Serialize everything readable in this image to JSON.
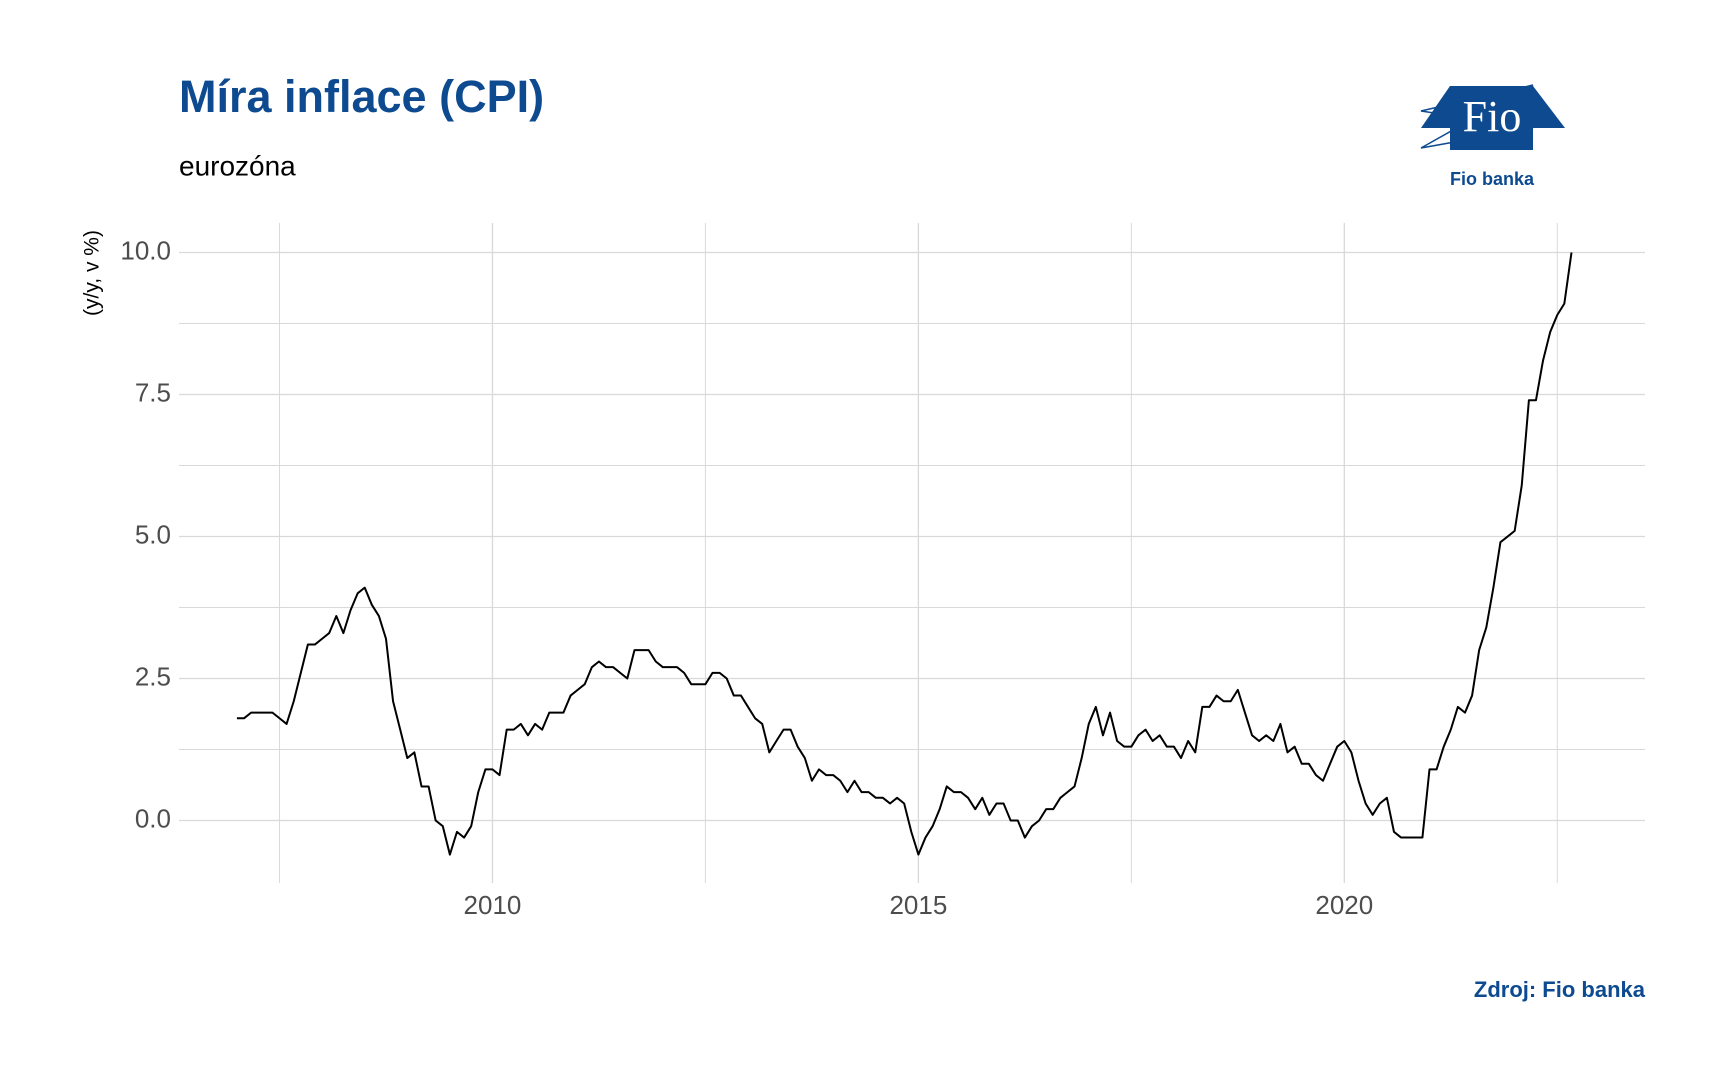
{
  "chart_data": {
    "type": "line",
    "title": "Míra inflace (CPI)",
    "subtitle": "eurozóna",
    "y_label": "(y/y, v %)",
    "source": "Zdroj: Fio banka",
    "logo": {
      "mark": "Fio",
      "name": "Fio banka"
    },
    "x": [
      2007,
      2007.083,
      2007.167,
      2007.25,
      2007.333,
      2007.417,
      2007.5,
      2007.583,
      2007.667,
      2007.75,
      2007.833,
      2007.917,
      2008,
      2008.083,
      2008.167,
      2008.25,
      2008.333,
      2008.417,
      2008.5,
      2008.583,
      2008.667,
      2008.75,
      2008.833,
      2008.917,
      2009,
      2009.083,
      2009.167,
      2009.25,
      2009.333,
      2009.417,
      2009.5,
      2009.583,
      2009.667,
      2009.75,
      2009.833,
      2009.917,
      2010,
      2010.083,
      2010.167,
      2010.25,
      2010.333,
      2010.417,
      2010.5,
      2010.583,
      2010.667,
      2010.75,
      2010.833,
      2010.917,
      2011,
      2011.083,
      2011.167,
      2011.25,
      2011.333,
      2011.417,
      2011.5,
      2011.583,
      2011.667,
      2011.75,
      2011.833,
      2011.917,
      2012,
      2012.083,
      2012.167,
      2012.25,
      2012.333,
      2012.417,
      2012.5,
      2012.583,
      2012.667,
      2012.75,
      2012.833,
      2012.917,
      2013,
      2013.083,
      2013.167,
      2013.25,
      2013.333,
      2013.417,
      2013.5,
      2013.583,
      2013.667,
      2013.75,
      2013.833,
      2013.917,
      2014,
      2014.083,
      2014.167,
      2014.25,
      2014.333,
      2014.417,
      2014.5,
      2014.583,
      2014.667,
      2014.75,
      2014.833,
      2014.917,
      2015,
      2015.083,
      2015.167,
      2015.25,
      2015.333,
      2015.417,
      2015.5,
      2015.583,
      2015.667,
      2015.75,
      2015.833,
      2015.917,
      2016,
      2016.083,
      2016.167,
      2016.25,
      2016.333,
      2016.417,
      2016.5,
      2016.583,
      2016.667,
      2016.75,
      2016.833,
      2016.917,
      2017,
      2017.083,
      2017.167,
      2017.25,
      2017.333,
      2017.417,
      2017.5,
      2017.583,
      2017.667,
      2017.75,
      2017.833,
      2017.917,
      2018,
      2018.083,
      2018.167,
      2018.25,
      2018.333,
      2018.417,
      2018.5,
      2018.583,
      2018.667,
      2018.75,
      2018.833,
      2018.917,
      2019,
      2019.083,
      2019.167,
      2019.25,
      2019.333,
      2019.417,
      2019.5,
      2019.583,
      2019.667,
      2019.75,
      2019.833,
      2019.917,
      2020,
      2020.083,
      2020.167,
      2020.25,
      2020.333,
      2020.417,
      2020.5,
      2020.583,
      2020.667,
      2020.75,
      2020.833,
      2020.917,
      2021,
      2021.083,
      2021.167,
      2021.25,
      2021.333,
      2021.417,
      2021.5,
      2021.583,
      2021.667,
      2021.75,
      2021.833,
      2021.917,
      2022,
      2022.083,
      2022.167,
      2022.25,
      2022.333,
      2022.417,
      2022.5,
      2022.583,
      2022.667
    ],
    "series": [
      {
        "name": "CPI",
        "color": "#000000",
        "values": [
          1.8,
          1.8,
          1.9,
          1.9,
          1.9,
          1.9,
          1.8,
          1.7,
          2.1,
          2.6,
          3.1,
          3.1,
          3.2,
          3.3,
          3.6,
          3.3,
          3.7,
          4.0,
          4.1,
          3.8,
          3.6,
          3.2,
          2.1,
          1.6,
          1.1,
          1.2,
          0.6,
          0.6,
          0.0,
          -0.1,
          -0.6,
          -0.2,
          -0.3,
          -0.1,
          0.5,
          0.9,
          0.9,
          0.8,
          1.6,
          1.6,
          1.7,
          1.5,
          1.7,
          1.6,
          1.9,
          1.9,
          1.9,
          2.2,
          2.3,
          2.4,
          2.7,
          2.8,
          2.7,
          2.7,
          2.6,
          2.5,
          3.0,
          3.0,
          3.0,
          2.8,
          2.7,
          2.7,
          2.7,
          2.6,
          2.4,
          2.4,
          2.4,
          2.6,
          2.6,
          2.5,
          2.2,
          2.2,
          2.0,
          1.8,
          1.7,
          1.2,
          1.4,
          1.6,
          1.6,
          1.3,
          1.1,
          0.7,
          0.9,
          0.8,
          0.8,
          0.7,
          0.5,
          0.7,
          0.5,
          0.5,
          0.4,
          0.4,
          0.3,
          0.4,
          0.3,
          -0.2,
          -0.6,
          -0.3,
          -0.1,
          0.2,
          0.6,
          0.5,
          0.5,
          0.4,
          0.2,
          0.4,
          0.1,
          0.3,
          0.3,
          0.0,
          0.0,
          -0.3,
          -0.1,
          0.0,
          0.2,
          0.2,
          0.4,
          0.5,
          0.6,
          1.1,
          1.7,
          2.0,
          1.5,
          1.9,
          1.4,
          1.3,
          1.3,
          1.5,
          1.6,
          1.4,
          1.5,
          1.3,
          1.3,
          1.1,
          1.4,
          1.2,
          2.0,
          2.0,
          2.2,
          2.1,
          2.1,
          2.3,
          1.9,
          1.5,
          1.4,
          1.5,
          1.4,
          1.7,
          1.2,
          1.3,
          1.0,
          1.0,
          0.8,
          0.7,
          1.0,
          1.3,
          1.4,
          1.2,
          0.7,
          0.3,
          0.1,
          0.3,
          0.4,
          -0.2,
          -0.3,
          -0.3,
          -0.3,
          -0.3,
          0.9,
          0.9,
          1.3,
          1.6,
          2.0,
          1.9,
          2.2,
          3.0,
          3.4,
          4.1,
          4.9,
          5.0,
          5.1,
          5.9,
          7.4,
          7.4,
          8.1,
          8.6,
          8.9,
          9.1,
          10.0
        ]
      }
    ],
    "xlim": [
      2006.32,
      2023.53
    ],
    "xticks": [
      2010,
      2015,
      2020
    ],
    "x_minor_grid": [
      2007.5,
      2012.5,
      2017.5,
      2022.5
    ],
    "ylim": [
      -1.1,
      10.52
    ],
    "yticks": [
      {
        "value": 0,
        "label": "0.0"
      },
      {
        "value": 2.5,
        "label": "2.5"
      },
      {
        "value": 5,
        "label": "5.0"
      },
      {
        "value": 7.5,
        "label": "7.5"
      },
      {
        "value": 10,
        "label": "10.0"
      }
    ],
    "y_minor_grid": [
      1.25,
      3.75,
      6.25,
      8.75
    ],
    "grid": true
  }
}
